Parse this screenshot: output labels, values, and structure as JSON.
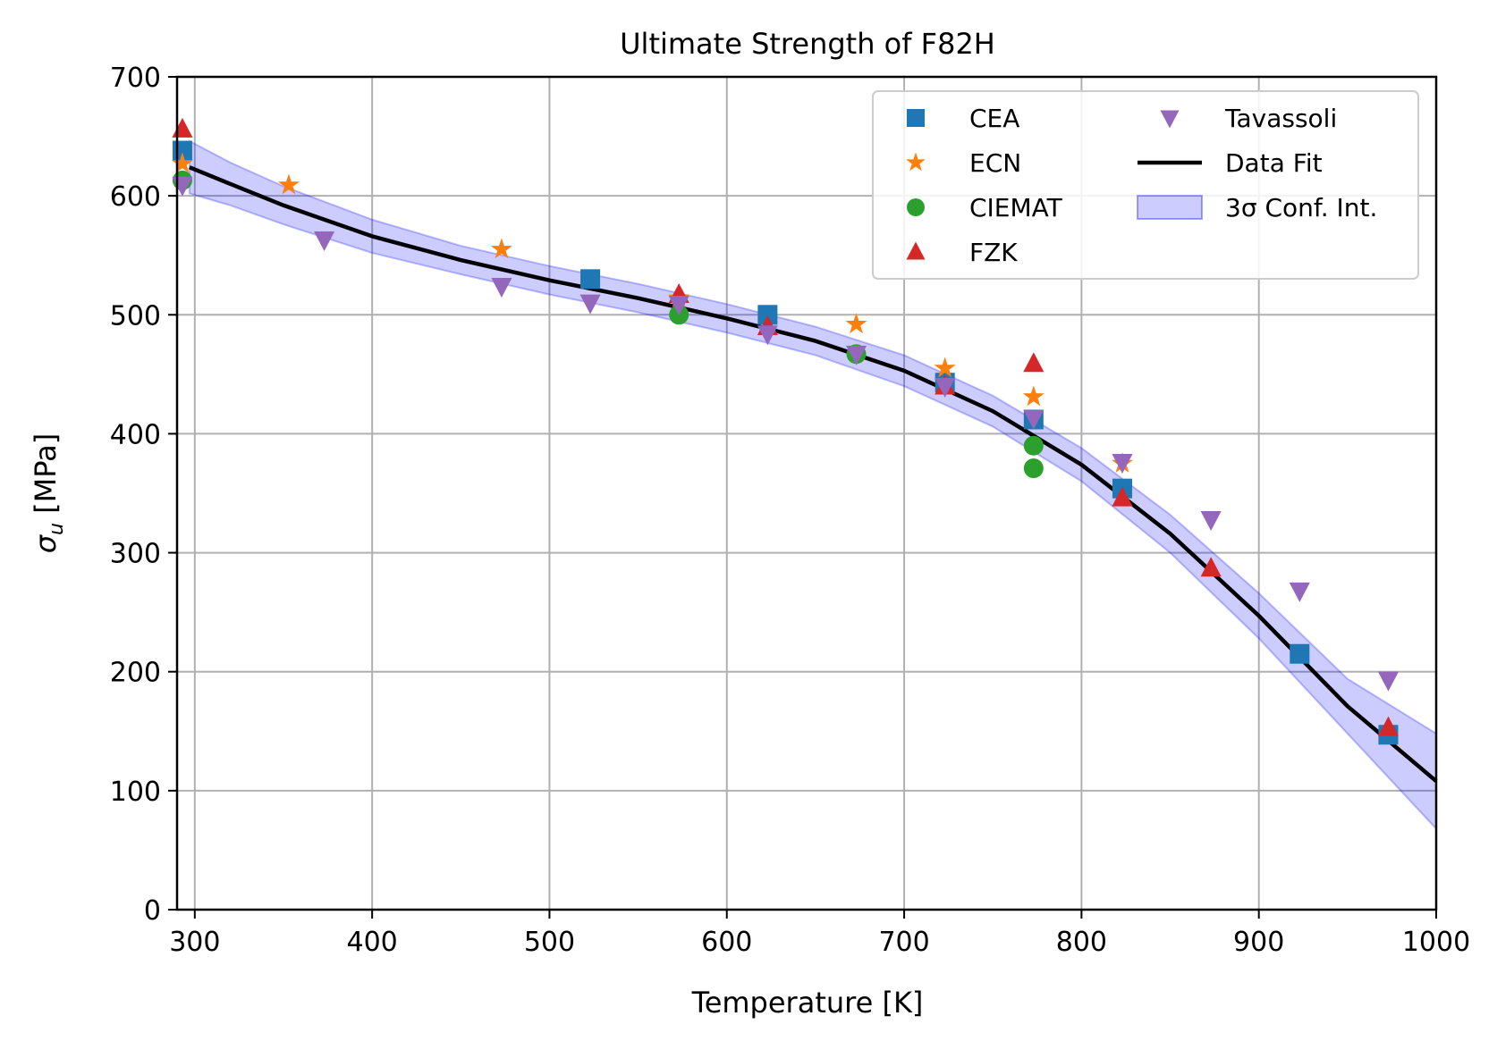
{
  "chart_data": {
    "type": "scatter",
    "title": "Ultimate Strength of F82H",
    "xlabel": "Temperature [K]",
    "ylabel_prefix": "σ",
    "ylabel_sub": "u",
    "ylabel_suffix": " [MPa]",
    "xlim": [
      290,
      1000
    ],
    "ylim": [
      0,
      700
    ],
    "xticks": [
      300,
      400,
      500,
      600,
      700,
      800,
      900,
      1000
    ],
    "yticks": [
      0,
      100,
      200,
      300,
      400,
      500,
      600,
      700
    ],
    "grid": true,
    "legend_position": "top-right",
    "series": [
      {
        "name": "CEA",
        "marker": "square",
        "color": "#1f77b4",
        "points": [
          [
            293,
            638
          ],
          [
            523,
            530
          ],
          [
            623,
            500
          ],
          [
            723,
            443
          ],
          [
            773,
            412
          ],
          [
            823,
            354
          ],
          [
            923,
            215
          ],
          [
            973,
            147
          ]
        ]
      },
      {
        "name": "ECN",
        "marker": "star",
        "color": "#ff7f0e",
        "points": [
          [
            293,
            627
          ],
          [
            353,
            609
          ],
          [
            473,
            555
          ],
          [
            573,
            514
          ],
          [
            673,
            492
          ],
          [
            723,
            455
          ],
          [
            773,
            431
          ],
          [
            823,
            375
          ]
        ]
      },
      {
        "name": "CIEMAT",
        "marker": "circle",
        "color": "#2ca02c",
        "points": [
          [
            293,
            613
          ],
          [
            573,
            500
          ],
          [
            673,
            467
          ],
          [
            773,
            390
          ],
          [
            773,
            371
          ]
        ]
      },
      {
        "name": "FZK",
        "marker": "triangle-up",
        "color": "#d62728",
        "points": [
          [
            293,
            656
          ],
          [
            573,
            517
          ],
          [
            623,
            490
          ],
          [
            723,
            440
          ],
          [
            773,
            459
          ],
          [
            823,
            346
          ],
          [
            873,
            287
          ],
          [
            973,
            153
          ]
        ]
      },
      {
        "name": "Tavassoli",
        "marker": "triangle-down",
        "color": "#9467bd",
        "points": [
          [
            293,
            609
          ],
          [
            373,
            563
          ],
          [
            473,
            524
          ],
          [
            523,
            510
          ],
          [
            573,
            509
          ],
          [
            623,
            484
          ],
          [
            673,
            467
          ],
          [
            723,
            440
          ],
          [
            773,
            413
          ],
          [
            823,
            376
          ],
          [
            873,
            328
          ],
          [
            923,
            268
          ],
          [
            973,
            193
          ]
        ]
      }
    ],
    "fit": {
      "name": "Data Fit",
      "color": "#000000",
      "x": [
        297,
        320,
        350,
        400,
        450,
        500,
        550,
        600,
        650,
        700,
        750,
        800,
        850,
        900,
        950,
        1000
      ],
      "y": [
        624,
        610,
        592,
        566,
        546,
        529,
        514,
        497,
        478,
        453,
        419,
        374,
        316,
        247,
        171,
        108
      ]
    },
    "band": {
      "name": "3σ Conf. Int.",
      "color": "#0000ff",
      "x": [
        297,
        320,
        350,
        400,
        450,
        500,
        550,
        600,
        650,
        700,
        750,
        800,
        850,
        900,
        950,
        1000
      ],
      "upper": [
        646,
        628,
        608,
        580,
        558,
        541,
        526,
        509,
        490,
        466,
        432,
        388,
        332,
        266,
        194,
        148
      ],
      "lower": [
        602,
        592,
        576,
        552,
        534,
        517,
        502,
        485,
        466,
        440,
        406,
        360,
        300,
        228,
        148,
        68
      ]
    }
  }
}
